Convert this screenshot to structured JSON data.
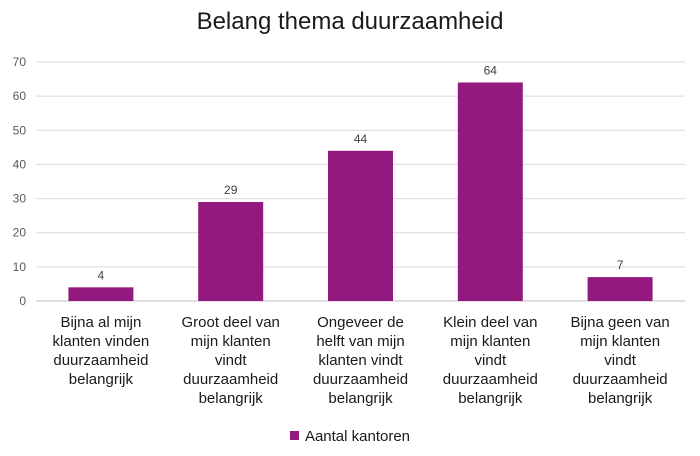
{
  "chart_data": {
    "type": "bar",
    "title": "Belang thema duurzaamheid",
    "categories": [
      [
        "Bijna al mijn",
        "klanten vinden",
        "duurzaamheid",
        "belangrijk"
      ],
      [
        "Groot deel van",
        "mijn klanten",
        "vindt",
        "duurzaamheid",
        "belangrijk"
      ],
      [
        "Ongeveer de",
        "helft van mijn",
        "klanten vindt",
        "duurzaamheid",
        "belangrijk"
      ],
      [
        "Klein deel van",
        "mijn klanten",
        "vindt",
        "duurzaamheid",
        "belangrijk"
      ],
      [
        "Bijna geen van",
        "mijn klanten",
        "vindt",
        "duurzaamheid",
        "belangrijk"
      ]
    ],
    "series": [
      {
        "name": "Aantal kantoren",
        "values": [
          4,
          29,
          44,
          64,
          7
        ],
        "color": "#93197f"
      }
    ],
    "ylim": [
      0,
      70
    ],
    "yticks": [
      0,
      10,
      20,
      30,
      40,
      50,
      60,
      70
    ],
    "grid": true,
    "legend_position": "bottom"
  }
}
